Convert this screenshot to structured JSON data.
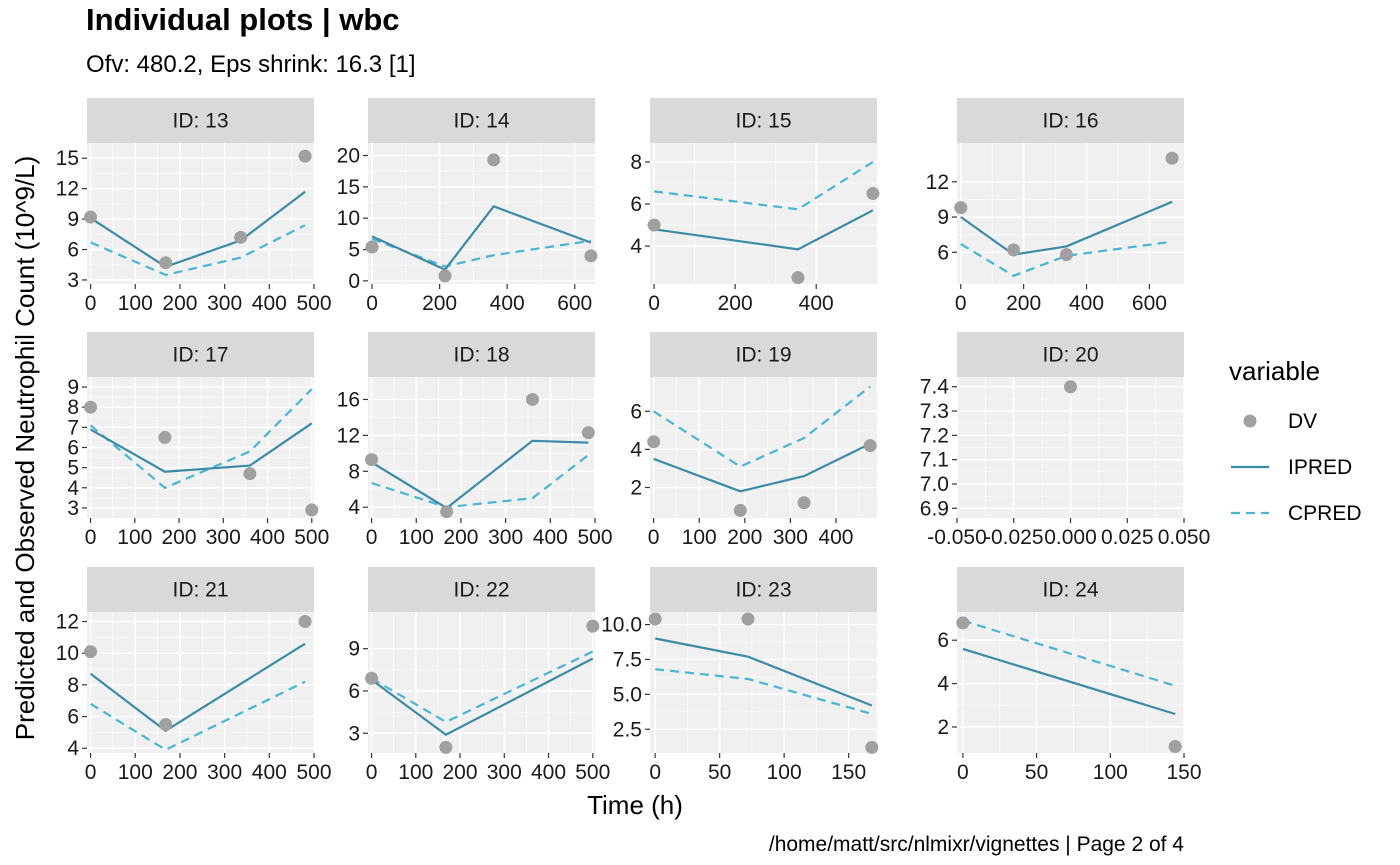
{
  "page": {
    "title": "Individual plots | wbc",
    "subtitle": "Ofv: 480.2, Eps shrink: 16.3 [1]",
    "caption": "/home/matt/src/nlmixr/vignettes | Page 2 of 4"
  },
  "colors": {
    "panel_bg": "#F0F0F0",
    "strip_bg": "#D9D9D9",
    "grid_major": "#FFFFFF",
    "dv_point": "#A0A0A0",
    "ipred_line": "#3C8AA8",
    "cpred_line": "#4AB4D6",
    "text_dark": "#1A1A1A",
    "axis_text": "#333333"
  },
  "chart_data": {
    "type": "line",
    "xlabel": "Time (h)",
    "ylabel": "Predicted and Observed Neutrophil Count (10^9/L)",
    "grid": true,
    "legend": {
      "title": "variable",
      "position": "right",
      "entries": [
        {
          "label": "DV",
          "kind": "point",
          "color": "#A0A0A0"
        },
        {
          "label": "IPRED",
          "kind": "line-solid",
          "color": "#3C8AA8"
        },
        {
          "label": "CPRED",
          "kind": "line-dashed",
          "color": "#4AB4D6"
        }
      ]
    },
    "panels": [
      {
        "id": "ID: 13",
        "xlim": [
          -8,
          500
        ],
        "ylim": [
          2.6,
          16.5
        ],
        "xticks": [
          0,
          100,
          200,
          300,
          400,
          500
        ],
        "xtick_labels": [
          "0",
          "100",
          "200",
          "300",
          "400",
          "500"
        ],
        "yticks": [
          3,
          6,
          9,
          12,
          15
        ],
        "ytick_labels": [
          "3",
          "6",
          "9",
          "12",
          "15"
        ],
        "dv": [
          [
            0,
            9.2
          ],
          [
            168,
            4.7
          ],
          [
            336,
            7.2
          ],
          [
            480,
            15.2
          ]
        ],
        "ipred": [
          [
            0,
            9.1
          ],
          [
            168,
            4.3
          ],
          [
            336,
            6.9
          ],
          [
            480,
            11.7
          ]
        ],
        "cpred": [
          [
            0,
            6.7
          ],
          [
            168,
            3.5
          ],
          [
            336,
            5.2
          ],
          [
            480,
            8.4
          ]
        ]
      },
      {
        "id": "ID: 14",
        "xlim": [
          -12,
          660
        ],
        "ylim": [
          -0.5,
          22
        ],
        "xticks": [
          0,
          200,
          400,
          600
        ],
        "xtick_labels": [
          "0",
          "200",
          "400",
          "600"
        ],
        "yticks": [
          0,
          5,
          10,
          15,
          20
        ],
        "ytick_labels": [
          "0",
          "5",
          "10",
          "15",
          "20"
        ],
        "dv": [
          [
            0,
            5.4
          ],
          [
            216,
            0.8
          ],
          [
            360,
            19.3
          ],
          [
            648,
            4.0
          ]
        ],
        "ipred": [
          [
            0,
            7.1
          ],
          [
            216,
            1.8
          ],
          [
            360,
            11.9
          ],
          [
            648,
            6.1
          ]
        ],
        "cpred": [
          [
            0,
            6.7
          ],
          [
            216,
            2.3
          ],
          [
            360,
            4.1
          ],
          [
            648,
            6.4
          ]
        ]
      },
      {
        "id": "ID: 15",
        "xlim": [
          -10,
          550
        ],
        "ylim": [
          2.2,
          8.9
        ],
        "xticks": [
          0,
          200,
          400
        ],
        "xtick_labels": [
          "0",
          "200",
          "400"
        ],
        "yticks": [
          4,
          6,
          8
        ],
        "ytick_labels": [
          "4",
          "6",
          "8"
        ],
        "dv": [
          [
            0,
            5.0
          ],
          [
            355,
            2.5
          ],
          [
            540,
            6.5
          ]
        ],
        "ipred": [
          [
            0,
            4.8
          ],
          [
            355,
            3.85
          ],
          [
            540,
            5.7
          ]
        ],
        "cpred": [
          [
            0,
            6.6
          ],
          [
            355,
            5.75
          ],
          [
            540,
            8.0
          ]
        ]
      },
      {
        "id": "ID: 16",
        "xlim": [
          -12,
          710
        ],
        "ylim": [
          3.3,
          15.3
        ],
        "xticks": [
          0,
          200,
          400,
          600
        ],
        "xtick_labels": [
          "0",
          "200",
          "400",
          "600"
        ],
        "yticks": [
          6,
          9,
          12
        ],
        "ytick_labels": [
          "6",
          "9",
          "12"
        ],
        "dv": [
          [
            0,
            9.8
          ],
          [
            168,
            6.2
          ],
          [
            336,
            5.8
          ],
          [
            672,
            14.0
          ]
        ],
        "ipred": [
          [
            0,
            9.0
          ],
          [
            168,
            5.8
          ],
          [
            336,
            6.5
          ],
          [
            672,
            10.3
          ]
        ],
        "cpred": [
          [
            0,
            6.7
          ],
          [
            168,
            4.0
          ],
          [
            336,
            5.7
          ],
          [
            672,
            6.9
          ]
        ]
      },
      {
        "id": "ID: 17",
        "xlim": [
          -8,
          505
        ],
        "ylim": [
          2.5,
          9.5
        ],
        "xticks": [
          0,
          100,
          200,
          300,
          400,
          500
        ],
        "xtick_labels": [
          "0",
          "100",
          "200",
          "300",
          "400",
          "500"
        ],
        "yticks": [
          3,
          4,
          5,
          6,
          7,
          8,
          9
        ],
        "ytick_labels": [
          "3",
          "4",
          "5",
          "6",
          "7",
          "8",
          "9"
        ],
        "dv": [
          [
            0,
            8.0
          ],
          [
            168,
            6.5
          ],
          [
            360,
            4.7
          ],
          [
            500,
            2.9
          ]
        ],
        "ipred": [
          [
            0,
            6.9
          ],
          [
            168,
            4.8
          ],
          [
            360,
            5.1
          ],
          [
            500,
            7.2
          ]
        ],
        "cpred": [
          [
            0,
            7.1
          ],
          [
            168,
            4.0
          ],
          [
            360,
            5.8
          ],
          [
            500,
            8.9
          ]
        ]
      },
      {
        "id": "ID: 18",
        "xlim": [
          -8,
          500
        ],
        "ylim": [
          2.8,
          18.5
        ],
        "xticks": [
          0,
          100,
          200,
          300,
          400,
          500
        ],
        "xtick_labels": [
          "0",
          "100",
          "200",
          "300",
          "400",
          "500"
        ],
        "yticks": [
          4,
          8,
          12,
          16
        ],
        "ytick_labels": [
          "4",
          "8",
          "12",
          "16"
        ],
        "dv": [
          [
            0,
            9.3
          ],
          [
            168,
            3.5
          ],
          [
            360,
            16.0
          ],
          [
            485,
            12.3
          ]
        ],
        "ipred": [
          [
            0,
            9.0
          ],
          [
            168,
            3.9
          ],
          [
            360,
            11.4
          ],
          [
            485,
            11.2
          ]
        ],
        "cpred": [
          [
            0,
            6.7
          ],
          [
            168,
            4.0
          ],
          [
            360,
            5.0
          ],
          [
            485,
            9.8
          ]
        ]
      },
      {
        "id": "ID: 19",
        "xlim": [
          -8,
          490
        ],
        "ylim": [
          0.4,
          7.8
        ],
        "xticks": [
          0,
          100,
          200,
          300,
          400,
          500
        ],
        "xtick_labels": [
          "0",
          "100",
          "200",
          "300",
          "400",
          "500"
        ],
        "yticks": [
          2,
          4,
          6
        ],
        "ytick_labels": [
          "2",
          "4",
          "6"
        ],
        "dv": [
          [
            0,
            4.4
          ],
          [
            190,
            0.8
          ],
          [
            330,
            1.2
          ],
          [
            475,
            4.2
          ]
        ],
        "ipred": [
          [
            0,
            3.5
          ],
          [
            190,
            1.8
          ],
          [
            330,
            2.6
          ],
          [
            475,
            4.3
          ]
        ],
        "cpred": [
          [
            0,
            6.0
          ],
          [
            190,
            3.1
          ],
          [
            330,
            4.6
          ],
          [
            475,
            7.3
          ]
        ]
      },
      {
        "id": "ID: 20",
        "xlim": [
          -0.05,
          0.05
        ],
        "ylim": [
          6.86,
          7.44
        ],
        "xticks": [
          -0.05,
          -0.025,
          0,
          0.025,
          0.05
        ],
        "xtick_labels": [
          "-0.050",
          "-0.025",
          "0.000",
          "0.025",
          "0.050"
        ],
        "yticks": [
          6.9,
          7.0,
          7.1,
          7.2,
          7.3,
          7.4
        ],
        "ytick_labels": [
          "6.9",
          "7.0",
          "7.1",
          "7.2",
          "7.3",
          "7.4"
        ],
        "dv": [
          [
            0,
            7.4
          ]
        ],
        "ipred": [],
        "cpred": []
      },
      {
        "id": "ID: 21",
        "xlim": [
          -8,
          500
        ],
        "ylim": [
          3.7,
          12.6
        ],
        "xticks": [
          0,
          100,
          200,
          300,
          400,
          500
        ],
        "xtick_labels": [
          "0",
          "100",
          "200",
          "300",
          "400",
          "500"
        ],
        "yticks": [
          4,
          6,
          8,
          10,
          12
        ],
        "ytick_labels": [
          "4",
          "6",
          "8",
          "10",
          "12"
        ],
        "dv": [
          [
            0,
            10.1
          ],
          [
            168,
            5.5
          ],
          [
            480,
            12.0
          ]
        ],
        "ipred": [
          [
            0,
            8.7
          ],
          [
            168,
            5.1
          ],
          [
            480,
            10.6
          ]
        ],
        "cpred": [
          [
            0,
            6.8
          ],
          [
            168,
            3.9
          ],
          [
            480,
            8.2
          ]
        ]
      },
      {
        "id": "ID: 22",
        "xlim": [
          -8,
          505
        ],
        "ylim": [
          1.6,
          11.6
        ],
        "xticks": [
          0,
          100,
          200,
          300,
          400,
          500
        ],
        "xtick_labels": [
          "0",
          "100",
          "200",
          "300",
          "400",
          "500"
        ],
        "yticks": [
          3,
          6,
          9
        ],
        "ytick_labels": [
          "3",
          "6",
          "9"
        ],
        "dv": [
          [
            0,
            6.9
          ],
          [
            168,
            2.0
          ],
          [
            500,
            10.6
          ]
        ],
        "ipred": [
          [
            0,
            6.8
          ],
          [
            168,
            2.9
          ],
          [
            500,
            8.3
          ]
        ],
        "cpred": [
          [
            0,
            6.9
          ],
          [
            168,
            3.8
          ],
          [
            500,
            8.8
          ]
        ]
      },
      {
        "id": "ID: 23",
        "xlim": [
          -4,
          172
        ],
        "ylim": [
          0.8,
          10.9
        ],
        "xticks": [
          0,
          50,
          100,
          150
        ],
        "xtick_labels": [
          "0",
          "50",
          "100",
          "150"
        ],
        "yticks": [
          2.5,
          5.0,
          7.5,
          10.0
        ],
        "ytick_labels": [
          "2.5",
          "5.0",
          "7.5",
          "10.0"
        ],
        "dv": [
          [
            0,
            10.4
          ],
          [
            72,
            10.4
          ],
          [
            168,
            1.2
          ]
        ],
        "ipred": [
          [
            0,
            9.0
          ],
          [
            72,
            7.7
          ],
          [
            168,
            4.2
          ]
        ],
        "cpred": [
          [
            0,
            6.8
          ],
          [
            72,
            6.1
          ],
          [
            168,
            3.6
          ]
        ]
      },
      {
        "id": "ID: 24",
        "xlim": [
          -4,
          150
        ],
        "ylim": [
          0.8,
          7.3
        ],
        "xticks": [
          0,
          50,
          100,
          150
        ],
        "xtick_labels": [
          "0",
          "50",
          "100",
          "150"
        ],
        "yticks": [
          2,
          4,
          6
        ],
        "ytick_labels": [
          "2",
          "4",
          "6"
        ],
        "dv": [
          [
            0,
            6.8
          ],
          [
            144,
            1.1
          ]
        ],
        "ipred": [
          [
            0,
            5.6
          ],
          [
            144,
            2.6
          ]
        ],
        "cpred": [
          [
            0,
            6.9
          ],
          [
            144,
            3.9
          ]
        ]
      }
    ]
  }
}
